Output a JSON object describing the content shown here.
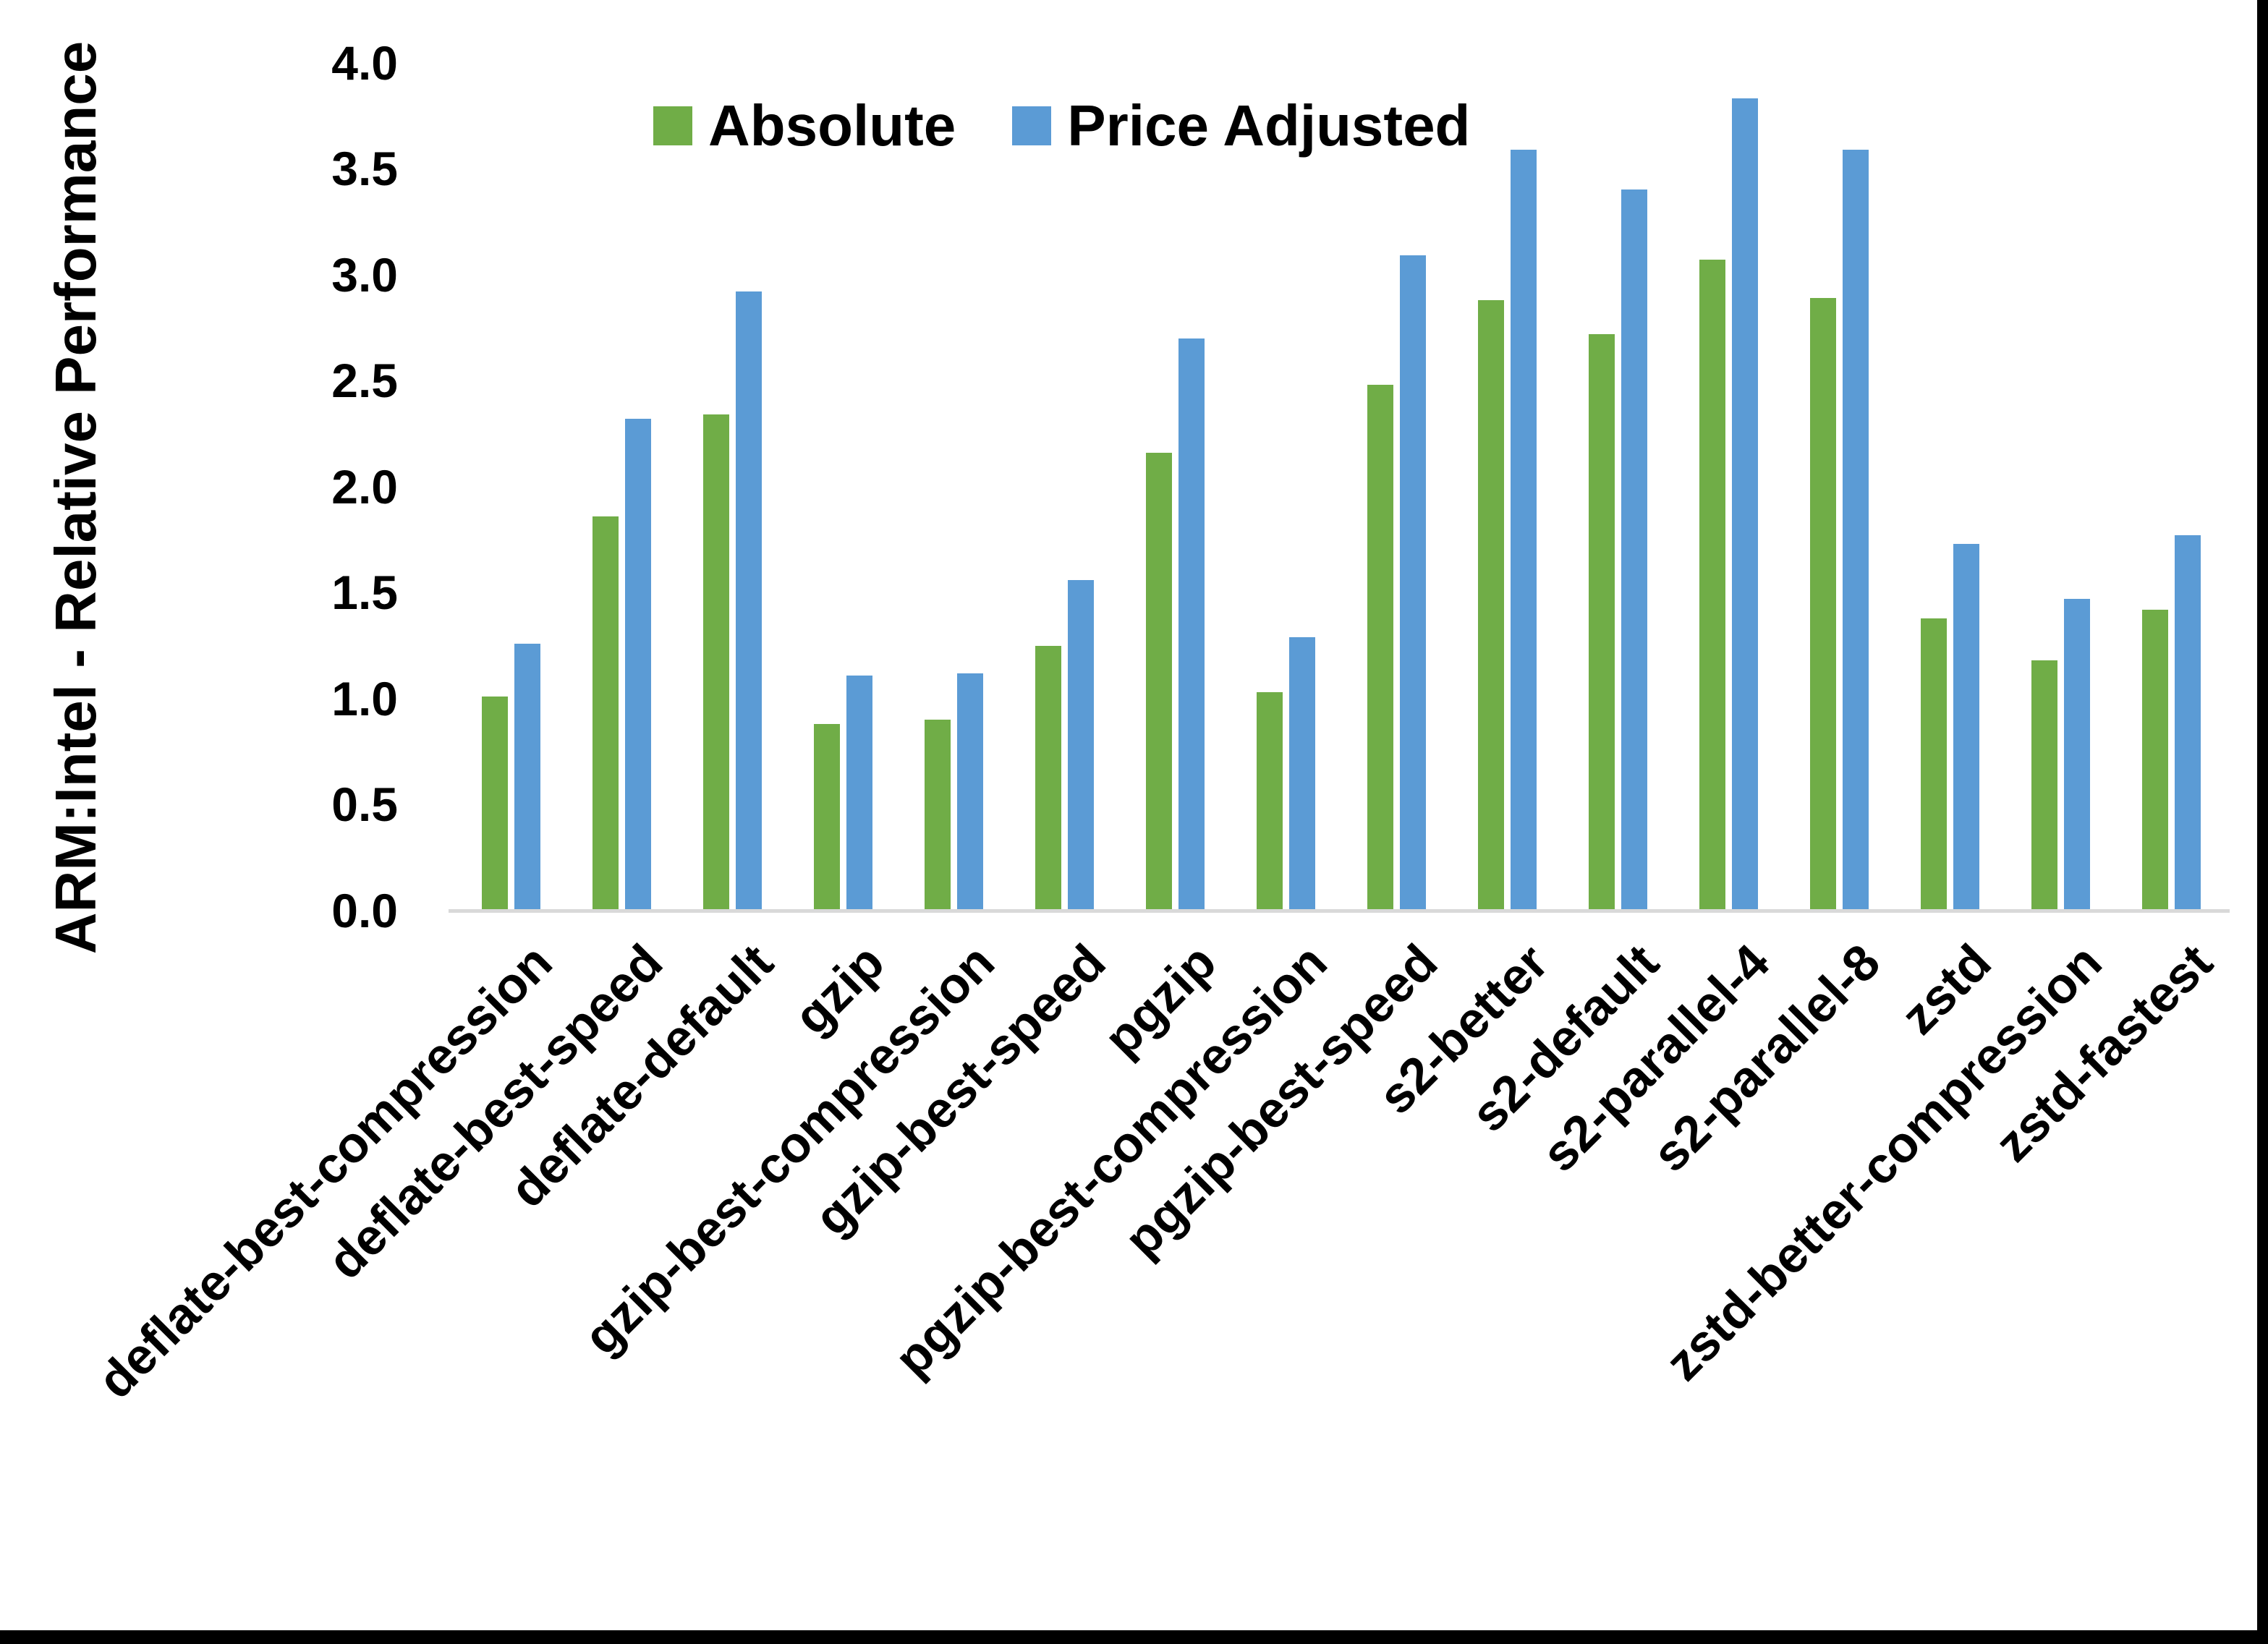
{
  "colors": {
    "background": "#FFFFFF",
    "frame": "#000000",
    "axis_line": "#D9D9D9",
    "text": "#000000",
    "absolute_green": "#70AD47",
    "price_adjusted_blue": "#5B9BD5"
  },
  "chart_data": {
    "type": "bar",
    "title": "",
    "xlabel": "",
    "ylabel": "ARM:Intel - Relative Performance",
    "ylim": [
      0.0,
      4.0
    ],
    "ytick_step": 0.5,
    "ytick_labels": [
      "0.0",
      "0.5",
      "1.0",
      "1.5",
      "2.0",
      "2.5",
      "3.0",
      "3.5",
      "4.0"
    ],
    "grid": false,
    "legend_position": "top-center",
    "categories": [
      "deflate-best-compression",
      "deflate-best-speed",
      "deflate-default",
      "gzip",
      "gzip-best-compression",
      "gzip-best-speed",
      "pgzip",
      "pgzip-best-compression",
      "pgzip-best-speed",
      "s2-better",
      "s2-default",
      "s2-parallel-4",
      "s2-parallel-8",
      "zstd",
      "zstd-better-compression",
      "zstd-fastest"
    ],
    "series": [
      {
        "name": "Absolute",
        "color": "#70AD47",
        "values": [
          1.01,
          1.86,
          2.34,
          0.88,
          0.9,
          1.25,
          2.16,
          1.03,
          2.48,
          2.88,
          2.72,
          3.07,
          2.89,
          1.38,
          1.18,
          1.42
        ]
      },
      {
        "name": "Price Adjusted",
        "color": "#5B9BD5",
        "values": [
          1.26,
          2.32,
          2.92,
          1.11,
          1.12,
          1.56,
          2.7,
          1.29,
          3.09,
          3.59,
          3.4,
          3.83,
          3.59,
          1.73,
          1.47,
          1.77
        ]
      }
    ]
  }
}
